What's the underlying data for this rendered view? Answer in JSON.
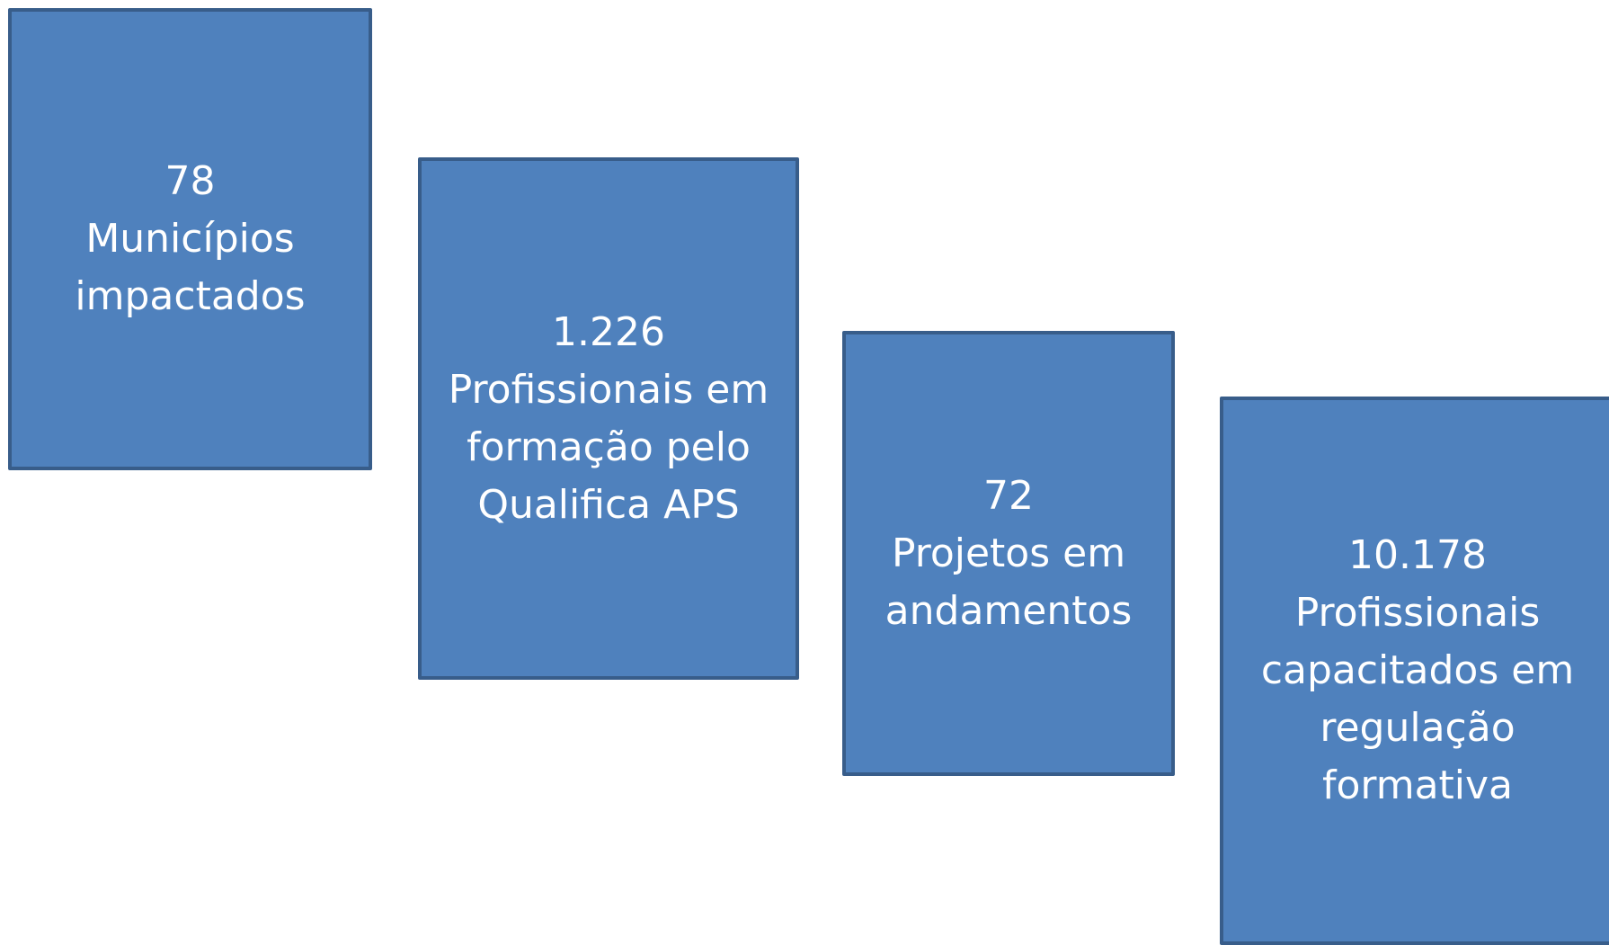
{
  "boxes": [
    {
      "number": "78",
      "lines": [
        "Municípios",
        "impactados"
      ]
    },
    {
      "number": "1.226",
      "lines": [
        "Profissionais em",
        "formação pelo",
        "Qualifica APS"
      ]
    },
    {
      "number": "72",
      "lines": [
        "Projetos em",
        "andamentos"
      ]
    },
    {
      "number": "10.178",
      "lines": [
        "Profissionais",
        "capacitados em",
        "regulação",
        "formativa"
      ]
    }
  ]
}
